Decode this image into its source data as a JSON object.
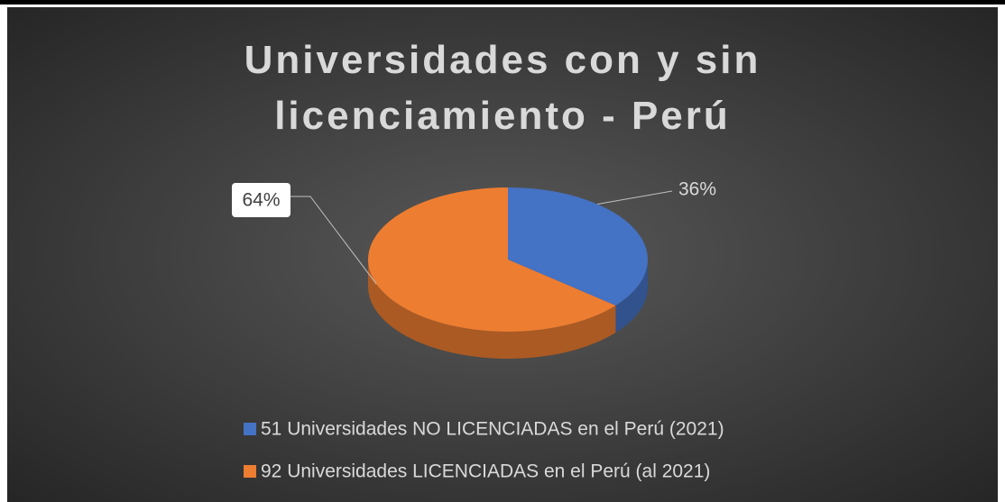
{
  "chart_data": {
    "type": "pie",
    "title": "Universidades con y sin licenciamiento - Perú",
    "series": [
      {
        "name": "51 Universidades NO LICENCIADAS en el Perú (2021)",
        "color": "#4472c4",
        "values": [
          36
        ]
      },
      {
        "name": "92 Universidades LICENCIADAS en el Perú (al 2021)",
        "color": "#ed7d31",
        "values": [
          64
        ]
      }
    ],
    "value_labels": [
      "36%",
      "64%"
    ],
    "legend": "bottom"
  }
}
